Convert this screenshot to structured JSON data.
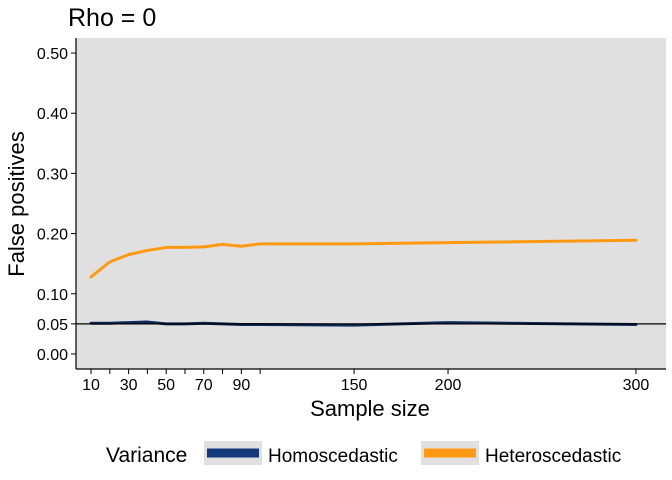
{
  "chart_data": {
    "type": "line",
    "title": "Rho = 0",
    "xlabel": "Sample size",
    "ylabel": "False positives",
    "xlim": [
      2,
      316
    ],
    "ylim": [
      -0.025,
      0.525
    ],
    "x_ticks": [
      10,
      30,
      50,
      70,
      90,
      150,
      200,
      300
    ],
    "x_minor_ticks": [
      20,
      40,
      60,
      80,
      100
    ],
    "y_ticks": [
      0.0,
      0.05,
      0.1,
      0.2,
      0.3,
      0.4,
      0.5
    ],
    "y_tick_labels": [
      "0.00",
      "0.05",
      "0.10",
      "0.20",
      "0.30",
      "0.40",
      "0.50"
    ],
    "hline": 0.05,
    "grid": false,
    "panel_background": "#E0E0E0",
    "legend": {
      "title": "Variance",
      "position": "bottom",
      "entries": [
        "Homoscedastic",
        "Heteroscedastic"
      ]
    },
    "series": [
      {
        "name": "Homoscedastic",
        "color": "#0D2A5C",
        "legend_color": "#14397A",
        "x": [
          10,
          20,
          30,
          40,
          50,
          60,
          70,
          80,
          90,
          100,
          150,
          200,
          300
        ],
        "y": [
          0.051,
          0.051,
          0.052,
          0.053,
          0.05,
          0.05,
          0.051,
          0.05,
          0.049,
          0.049,
          0.048,
          0.052,
          0.049
        ]
      },
      {
        "name": "Heteroscedastic",
        "color": "#FF9912",
        "legend_color": "#FF9912",
        "x": [
          10,
          20,
          30,
          40,
          50,
          60,
          70,
          80,
          90,
          100,
          150,
          200,
          300
        ],
        "y": [
          0.128,
          0.153,
          0.165,
          0.172,
          0.177,
          0.177,
          0.178,
          0.182,
          0.179,
          0.183,
          0.183,
          0.185,
          0.189
        ]
      }
    ]
  }
}
